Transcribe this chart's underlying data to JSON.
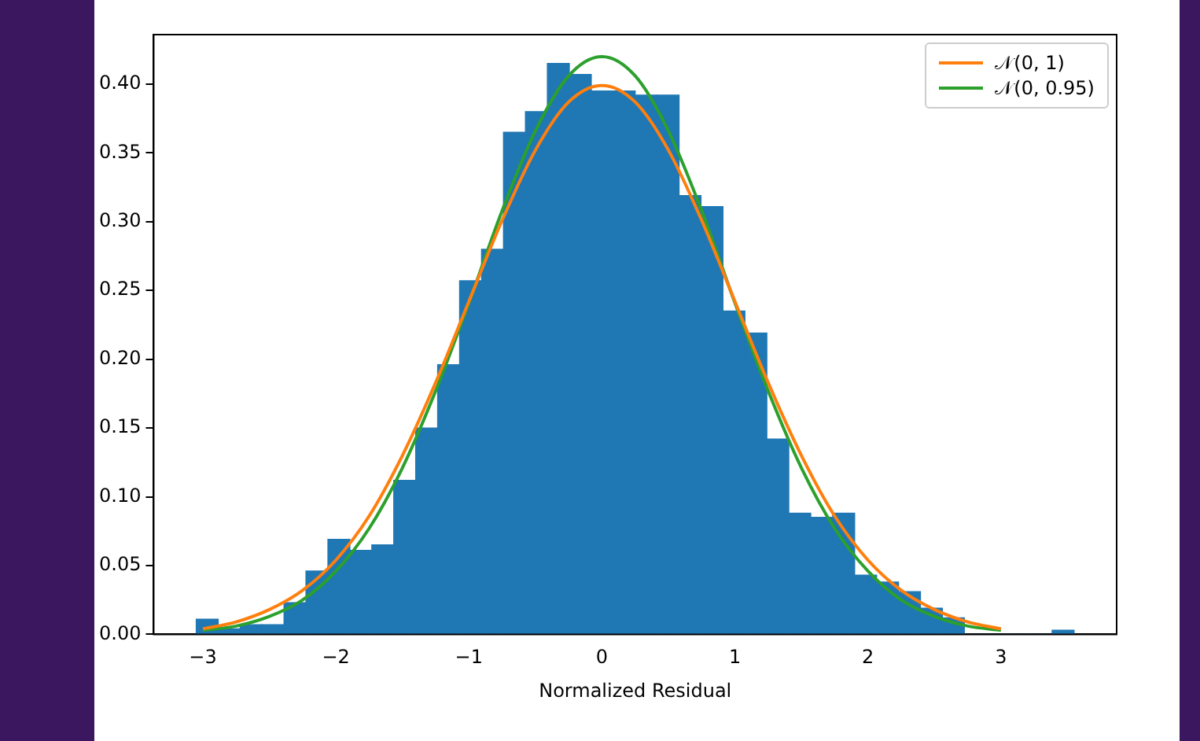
{
  "chart_data": {
    "type": "histogram",
    "xlabel": "Normalized Residual",
    "color": "#1f77b4",
    "bins": [
      -3.05,
      -2.885,
      -2.72,
      -2.555,
      -2.39,
      -2.225,
      -2.06,
      -1.895,
      -1.73,
      -1.565,
      -1.4,
      -1.235,
      -1.07,
      -0.905,
      -0.74,
      -0.575,
      -0.41,
      -0.245,
      -0.08,
      0.085,
      0.25,
      0.415,
      0.58,
      0.745,
      0.91,
      1.075,
      1.24,
      1.405,
      1.57,
      1.735,
      1.9,
      2.065,
      2.23,
      2.395,
      2.56,
      2.725,
      2.89,
      3.055,
      3.22,
      3.385,
      3.55
    ],
    "values": [
      0.011,
      0.004,
      0.007,
      0.007,
      0.023,
      0.046,
      0.069,
      0.061,
      0.065,
      0.112,
      0.15,
      0.196,
      0.257,
      0.28,
      0.365,
      0.38,
      0.415,
      0.407,
      0.395,
      0.395,
      0.392,
      0.392,
      0.319,
      0.311,
      0.235,
      0.219,
      0.142,
      0.088,
      0.085,
      0.088,
      0.043,
      0.038,
      0.031,
      0.019,
      0.012,
      0,
      0,
      0,
      0,
      0.003
    ],
    "series": [
      {
        "type": "line",
        "name": "𝒩(0, 1)",
        "color": "#ff7f0e",
        "x": [
          -3,
          -2.75,
          -2.5,
          -2.25,
          -2,
          -1.75,
          -1.5,
          -1.25,
          -1,
          -0.75,
          -0.5,
          -0.25,
          0,
          0.25,
          0.5,
          0.75,
          1,
          1.25,
          1.5,
          1.75,
          2,
          2.25,
          2.5,
          2.75,
          3
        ],
        "values": [
          0.004,
          0.009,
          0.018,
          0.032,
          0.054,
          0.086,
          0.13,
          0.183,
          0.242,
          0.301,
          0.352,
          0.387,
          0.399,
          0.387,
          0.352,
          0.301,
          0.242,
          0.183,
          0.13,
          0.086,
          0.054,
          0.032,
          0.018,
          0.009,
          0.004
        ]
      },
      {
        "type": "line",
        "name": "𝒩(0, 0.95)",
        "color": "#2ca02c",
        "x": [
          -3,
          -2.75,
          -2.5,
          -2.25,
          -2,
          -1.75,
          -1.5,
          -1.25,
          -1,
          -0.75,
          -0.5,
          -0.25,
          0,
          0.25,
          0.5,
          0.75,
          1,
          1.25,
          1.5,
          1.75,
          2,
          2.25,
          2.5,
          2.75,
          3
        ],
        "values": [
          0.003,
          0.006,
          0.013,
          0.025,
          0.046,
          0.077,
          0.121,
          0.177,
          0.241,
          0.308,
          0.366,
          0.406,
          0.42,
          0.406,
          0.366,
          0.308,
          0.241,
          0.177,
          0.121,
          0.077,
          0.046,
          0.025,
          0.013,
          0.006,
          0.003
        ]
      }
    ],
    "xlim": [
      -3.37,
      3.87
    ],
    "xticks": [
      -3,
      -2,
      -1,
      0,
      1,
      2,
      3
    ],
    "ylim": [
      0,
      0.436
    ],
    "yticks": [
      {
        "value": 0,
        "label": "0.00"
      },
      {
        "value": 0.05,
        "label": "0.05"
      },
      {
        "value": 0.1,
        "label": "0.10"
      },
      {
        "value": 0.15,
        "label": "0.15"
      },
      {
        "value": 0.2,
        "label": "0.20"
      },
      {
        "value": 0.25,
        "label": "0.25"
      },
      {
        "value": 0.3,
        "label": "0.30"
      },
      {
        "value": 0.35,
        "label": "0.35"
      },
      {
        "value": 0.4,
        "label": "0.40"
      }
    ],
    "grid": false,
    "legend": "top right"
  }
}
